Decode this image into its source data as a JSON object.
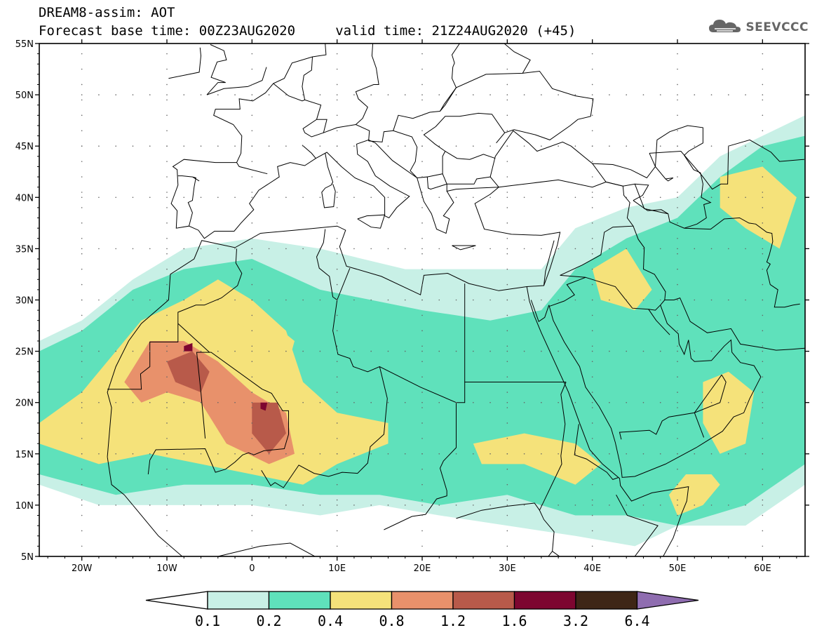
{
  "title": {
    "line1": "DREAM8-assim: AOT",
    "line2": "Forecast base time: 00Z23AUG2020     valid time: 21Z24AUG2020 (+45)"
  },
  "logo": {
    "text": "SEEVCCC",
    "icon": "cloud-icon"
  },
  "map": {
    "lon_range": [
      -25,
      65
    ],
    "lat_range": [
      5,
      55
    ],
    "lat_ticks": [
      {
        "value": 55,
        "label": "55N"
      },
      {
        "value": 50,
        "label": "50N"
      },
      {
        "value": 45,
        "label": "45N"
      },
      {
        "value": 40,
        "label": "40N"
      },
      {
        "value": 35,
        "label": "35N"
      },
      {
        "value": 30,
        "label": "30N"
      },
      {
        "value": 25,
        "label": "25N"
      },
      {
        "value": 20,
        "label": "20N"
      },
      {
        "value": 15,
        "label": "15N"
      },
      {
        "value": 10,
        "label": "10N"
      },
      {
        "value": 5,
        "label": "5N"
      }
    ],
    "lon_ticks": [
      {
        "value": -20,
        "label": "20W"
      },
      {
        "value": -10,
        "label": "10W"
      },
      {
        "value": 0,
        "label": "0"
      },
      {
        "value": 10,
        "label": "10E"
      },
      {
        "value": 20,
        "label": "20E"
      },
      {
        "value": 30,
        "label": "30E"
      },
      {
        "value": 40,
        "label": "40E"
      },
      {
        "value": 50,
        "label": "50E"
      },
      {
        "value": 60,
        "label": "60E"
      }
    ]
  },
  "colorbar": {
    "levels": [
      "0.1",
      "0.2",
      "0.4",
      "0.8",
      "1.2",
      "1.6",
      "3.2",
      "6.4"
    ],
    "colors": [
      "#ffffff",
      "#c8f0e6",
      "#5fe1bb",
      "#f5e27a",
      "#e8916b",
      "#b85a4a",
      "#7d0630",
      "#3e2616",
      "#8f6db0"
    ]
  },
  "chart_data": {
    "type": "heatmap",
    "variable": "AOT",
    "x_range": [
      -25,
      65
    ],
    "y_range": [
      5,
      55
    ],
    "contour_levels": [
      0.1,
      0.2,
      0.4,
      0.8,
      1.2,
      1.6,
      3.2,
      6.4
    ],
    "regions": [
      {
        "min_level": 0.1,
        "polygon": [
          [
            -25,
            26
          ],
          [
            -20,
            28
          ],
          [
            -14,
            32
          ],
          [
            -8,
            35
          ],
          [
            0,
            36
          ],
          [
            8,
            35
          ],
          [
            18,
            33
          ],
          [
            26,
            33
          ],
          [
            34,
            33
          ],
          [
            38,
            37
          ],
          [
            44,
            39
          ],
          [
            50,
            40
          ],
          [
            55,
            44
          ],
          [
            60,
            46
          ],
          [
            65,
            48
          ],
          [
            65,
            12
          ],
          [
            58,
            8
          ],
          [
            50,
            8
          ],
          [
            45,
            6
          ],
          [
            38,
            7
          ],
          [
            30,
            8
          ],
          [
            22,
            9
          ],
          [
            15,
            10
          ],
          [
            8,
            9
          ],
          [
            0,
            10
          ],
          [
            -8,
            10
          ],
          [
            -18,
            10
          ],
          [
            -25,
            12
          ]
        ]
      },
      {
        "min_level": 0.2,
        "polygon": [
          [
            -25,
            25
          ],
          [
            -20,
            27
          ],
          [
            -14,
            31
          ],
          [
            -8,
            33
          ],
          [
            0,
            34
          ],
          [
            8,
            31
          ],
          [
            14,
            30
          ],
          [
            20,
            29
          ],
          [
            28,
            28
          ],
          [
            34,
            29
          ],
          [
            38,
            33
          ],
          [
            44,
            36
          ],
          [
            50,
            38
          ],
          [
            55,
            42
          ],
          [
            60,
            45
          ],
          [
            65,
            46
          ],
          [
            65,
            14
          ],
          [
            58,
            10
          ],
          [
            50,
            8
          ],
          [
            44,
            9
          ],
          [
            38,
            9
          ],
          [
            30,
            11
          ],
          [
            22,
            10
          ],
          [
            15,
            11
          ],
          [
            8,
            11
          ],
          [
            0,
            12
          ],
          [
            -8,
            12
          ],
          [
            -16,
            11
          ],
          [
            -25,
            13
          ]
        ]
      },
      {
        "min_level": 0.4,
        "polygon": [
          [
            -25,
            18
          ],
          [
            -20,
            21
          ],
          [
            -16,
            25
          ],
          [
            -13,
            28
          ],
          [
            -8,
            30
          ],
          [
            -4,
            32
          ],
          [
            0,
            30
          ],
          [
            4,
            27
          ],
          [
            6,
            22
          ],
          [
            10,
            19
          ],
          [
            16,
            18
          ],
          [
            16,
            16
          ],
          [
            10,
            14
          ],
          [
            6,
            12
          ],
          [
            0,
            13
          ],
          [
            -6,
            14
          ],
          [
            -12,
            15
          ],
          [
            -18,
            14
          ],
          [
            -25,
            16
          ]
        ]
      },
      {
        "min_level": 0.4,
        "polygon": [
          [
            -3,
            27
          ],
          [
            2,
            28
          ],
          [
            5,
            26
          ],
          [
            4,
            23
          ],
          [
            0,
            24
          ],
          [
            -3,
            25
          ]
        ]
      },
      {
        "min_level": 0.4,
        "polygon": [
          [
            40,
            33
          ],
          [
            44,
            35
          ],
          [
            47,
            31
          ],
          [
            45,
            29
          ],
          [
            41,
            30
          ]
        ]
      },
      {
        "min_level": 0.4,
        "polygon": [
          [
            55,
            42
          ],
          [
            60,
            43
          ],
          [
            64,
            40
          ],
          [
            62,
            35
          ],
          [
            58,
            37
          ],
          [
            55,
            39
          ]
        ]
      },
      {
        "min_level": 0.4,
        "polygon": [
          [
            53,
            22
          ],
          [
            56,
            23
          ],
          [
            59,
            21
          ],
          [
            58,
            16
          ],
          [
            55,
            15
          ],
          [
            53,
            18
          ]
        ]
      },
      {
        "min_level": 0.4,
        "polygon": [
          [
            26,
            16
          ],
          [
            32,
            17
          ],
          [
            38,
            16
          ],
          [
            41,
            14
          ],
          [
            38,
            12
          ],
          [
            32,
            14
          ],
          [
            27,
            14
          ]
        ]
      },
      {
        "min_level": 0.4,
        "polygon": [
          [
            49,
            11
          ],
          [
            51,
            13
          ],
          [
            54,
            13
          ],
          [
            55,
            12
          ],
          [
            53,
            10
          ],
          [
            50,
            9
          ]
        ]
      },
      {
        "min_level": 0.8,
        "polygon": [
          [
            -15,
            22
          ],
          [
            -12,
            26
          ],
          [
            -8,
            26
          ],
          [
            -4,
            24
          ],
          [
            0,
            21
          ],
          [
            4,
            19
          ],
          [
            5,
            15
          ],
          [
            2,
            14
          ],
          [
            -3,
            16
          ],
          [
            -6,
            20
          ],
          [
            -10,
            21
          ],
          [
            -13,
            20
          ]
        ]
      },
      {
        "min_level": 1.2,
        "polygon": [
          [
            -10,
            24
          ],
          [
            -7,
            25
          ],
          [
            -5,
            23
          ],
          [
            -6,
            21
          ],
          [
            -9,
            22
          ]
        ]
      },
      {
        "min_level": 1.2,
        "polygon": [
          [
            0,
            20
          ],
          [
            3,
            20
          ],
          [
            4,
            17
          ],
          [
            2,
            15
          ],
          [
            0,
            17
          ]
        ]
      },
      {
        "min_level": 1.6,
        "polygon": [
          [
            -8,
            25.5
          ],
          [
            -7,
            25.8
          ],
          [
            -7,
            25
          ],
          [
            -8,
            25
          ]
        ]
      },
      {
        "min_level": 1.6,
        "polygon": [
          [
            1,
            20
          ],
          [
            1.8,
            20
          ],
          [
            1.6,
            19.2
          ],
          [
            1,
            19.4
          ]
        ]
      }
    ]
  }
}
